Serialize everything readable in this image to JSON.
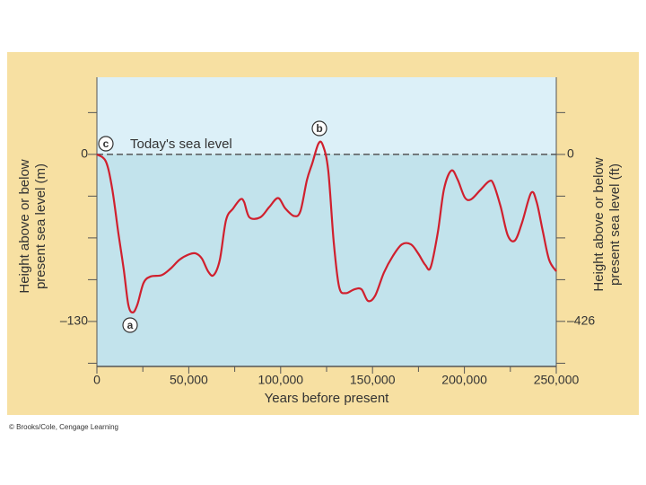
{
  "chart_data": {
    "type": "line",
    "y_label_lines": [
      "Height above or below",
      "present sea level (m)"
    ],
    "y2_label_lines": [
      "Height above or below",
      "present sea level (ft)"
    ],
    "x_label": "Years before present",
    "reference_label": "Today's sea level",
    "markers": [
      "a",
      "b",
      "c"
    ],
    "credit": "© Brooks/Cole, Cengage Learning",
    "xlim": [
      0,
      250000
    ],
    "xticks": [
      0,
      {
        "value": 50000,
        "label": "50,000"
      },
      {
        "value": 100000,
        "label": "100,000"
      },
      {
        "value": 150000,
        "label": "150,000"
      },
      {
        "value": 200000,
        "label": "200,000"
      },
      {
        "value": 250000,
        "label": "250,000"
      }
    ],
    "minor_xticks": [
      25000,
      75000,
      125000,
      175000,
      225000
    ],
    "ylim": [
      -165,
      60
    ],
    "yticks": [
      0,
      {
        "value": -130,
        "label": "–130"
      }
    ],
    "minor_yticks": [
      32.5,
      -32.5,
      -65,
      -97.5,
      -162.5
    ],
    "y2lim": [
      -541,
      197
    ],
    "y2ticks": [
      0,
      {
        "value": -426,
        "label": "–426"
      }
    ],
    "reference_value": 0,
    "x": [
      0,
      4900,
      8300,
      11700,
      14600,
      17100,
      19500,
      22000,
      25400,
      29300,
      35200,
      40000,
      44900,
      49800,
      53700,
      57100,
      60500,
      63500,
      66900,
      70300,
      74200,
      78100,
      80100,
      83000,
      88900,
      93800,
      98600,
      102500,
      107400,
      110800,
      114300,
      117200,
      120600,
      123000,
      125900,
      128900,
      131800,
      135300,
      140100,
      144000,
      147500,
      151400,
      156200,
      161100,
      166000,
      170900,
      174800,
      178700,
      181600,
      185500,
      188900,
      192900,
      196300,
      200200,
      203600,
      208500,
      213400,
      215800,
      219700,
      223600,
      227500,
      231400,
      236300,
      239300,
      242700,
      246100,
      250000
    ],
    "series": [
      {
        "name": "Sea level",
        "color": "#d0202e",
        "values": [
          0,
          -5.6,
          -26.6,
          -61.5,
          -89.4,
          -117,
          -123,
          -117,
          -100,
          -95,
          -94,
          -89,
          -82,
          -78,
          -77,
          -81,
          -91,
          -94,
          -82,
          -51,
          -42,
          -35,
          -37,
          -49,
          -49,
          -41,
          -34,
          -42,
          -48,
          -44,
          -20,
          -7,
          8.4,
          7,
          -12.6,
          -68.5,
          -103,
          -108,
          -105,
          -105,
          -114,
          -110,
          -92,
          -79,
          -70,
          -70,
          -77,
          -86,
          -88,
          -61,
          -27,
          -12.6,
          -19.6,
          -33.5,
          -35,
          -28,
          -21,
          -23,
          -40.5,
          -63,
          -67,
          -53,
          -30,
          -37,
          -60,
          -82,
          -91
        ]
      }
    ],
    "colors": {
      "panel": "#f7e0a2",
      "above": "#dcf0f8",
      "below": "#c2e3ec",
      "axis": "#555555"
    }
  }
}
